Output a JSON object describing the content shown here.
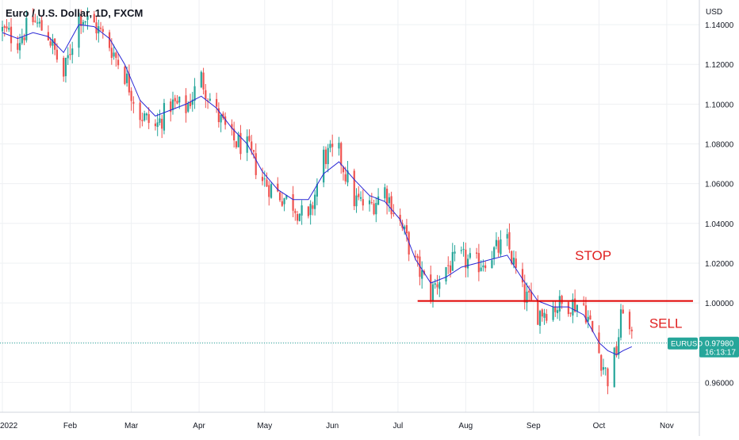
{
  "chart_data": {
    "type": "candlestick",
    "title": "Euro / U.S. Dollar, 1D, FXCM",
    "symbol": "EURUSD",
    "currency": "USD",
    "last_price": "0.97980",
    "countdown": "16:13:17",
    "y_ticks": [
      "1.14000",
      "1.12000",
      "1.10000",
      "1.08000",
      "1.06000",
      "1.04000",
      "1.02000",
      "1.00000",
      "0.96000"
    ],
    "y_tick_values": [
      1.14,
      1.12,
      1.1,
      1.08,
      1.06,
      1.04,
      1.02,
      1.0,
      0.96
    ],
    "ylim": [
      0.945,
      1.15
    ],
    "x_ticks": [
      "2022",
      "Feb",
      "Mar",
      "Apr",
      "May",
      "Jun",
      "Jul",
      "Aug",
      "Sep",
      "Oct",
      "Nov"
    ],
    "x_tick_days": [
      0,
      31,
      59,
      90,
      120,
      151,
      181,
      212,
      243,
      273,
      304
    ],
    "xlim": [
      0,
      320
    ],
    "close_series": [
      [
        0,
        1.137
      ],
      [
        7,
        1.132
      ],
      [
        14,
        1.142
      ],
      [
        21,
        1.135
      ],
      [
        28,
        1.114
      ],
      [
        35,
        1.145
      ],
      [
        42,
        1.14
      ],
      [
        49,
        1.13
      ],
      [
        56,
        1.115
      ],
      [
        63,
        1.095
      ],
      [
        70,
        1.088
      ],
      [
        77,
        1.1
      ],
      [
        84,
        1.098
      ],
      [
        91,
        1.113
      ],
      [
        98,
        1.095
      ],
      [
        105,
        1.082
      ],
      [
        112,
        1.078
      ],
      [
        119,
        1.062
      ],
      [
        126,
        1.055
      ],
      [
        133,
        1.05
      ],
      [
        140,
        1.04
      ],
      [
        147,
        1.074
      ],
      [
        154,
        1.075
      ],
      [
        161,
        1.052
      ],
      [
        168,
        1.048
      ],
      [
        175,
        1.057
      ],
      [
        182,
        1.04
      ],
      [
        189,
        1.02
      ],
      [
        196,
        1.005
      ],
      [
        203,
        1.018
      ],
      [
        210,
        1.022
      ],
      [
        217,
        1.019
      ],
      [
        224,
        1.025
      ],
      [
        231,
        1.03
      ],
      [
        238,
        1.005
      ],
      [
        245,
        0.995
      ],
      [
        252,
        0.998
      ],
      [
        259,
        1.0
      ],
      [
        266,
        0.999
      ],
      [
        273,
        0.975
      ],
      [
        277,
        0.962
      ],
      [
        281,
        0.976
      ],
      [
        284,
        0.999
      ],
      [
        288,
        0.98
      ]
    ],
    "ma_series": [
      [
        0,
        1.136
      ],
      [
        7,
        1.133
      ],
      [
        14,
        1.136
      ],
      [
        21,
        1.134
      ],
      [
        28,
        1.126
      ],
      [
        35,
        1.14
      ],
      [
        42,
        1.139
      ],
      [
        49,
        1.133
      ],
      [
        56,
        1.12
      ],
      [
        63,
        1.102
      ],
      [
        70,
        1.094
      ],
      [
        77,
        1.097
      ],
      [
        84,
        1.1
      ],
      [
        91,
        1.104
      ],
      [
        98,
        1.098
      ],
      [
        105,
        1.088
      ],
      [
        112,
        1.08
      ],
      [
        119,
        1.066
      ],
      [
        126,
        1.057
      ],
      [
        133,
        1.052
      ],
      [
        140,
        1.052
      ],
      [
        147,
        1.065
      ],
      [
        154,
        1.071
      ],
      [
        161,
        1.062
      ],
      [
        168,
        1.054
      ],
      [
        175,
        1.051
      ],
      [
        182,
        1.042
      ],
      [
        189,
        1.022
      ],
      [
        196,
        1.01
      ],
      [
        203,
        1.013
      ],
      [
        210,
        1.018
      ],
      [
        217,
        1.02
      ],
      [
        224,
        1.022
      ],
      [
        231,
        1.024
      ],
      [
        238,
        1.012
      ],
      [
        245,
        1.001
      ],
      [
        252,
        0.998
      ],
      [
        259,
        0.998
      ],
      [
        266,
        0.994
      ],
      [
        273,
        0.98
      ],
      [
        277,
        0.976
      ],
      [
        281,
        0.974
      ],
      [
        284,
        0.976
      ],
      [
        288,
        0.978
      ]
    ],
    "horizontal_line": {
      "value": 1.001,
      "from_day": 190,
      "to_day": 316,
      "color": "#e00000"
    },
    "annotations": [
      {
        "text": "STOP",
        "day": 262,
        "value": 1.0215,
        "color": "#e02020"
      },
      {
        "text": "SELL",
        "day": 296,
        "value": 0.9875,
        "color": "#e02020"
      }
    ],
    "colors": {
      "up": "#26a69a",
      "down": "#ef5350",
      "ma": "#2a28d6",
      "last_badge": "#26a69a",
      "grid": "#eef0f3",
      "axis_text": "#131722"
    },
    "grid": true
  }
}
